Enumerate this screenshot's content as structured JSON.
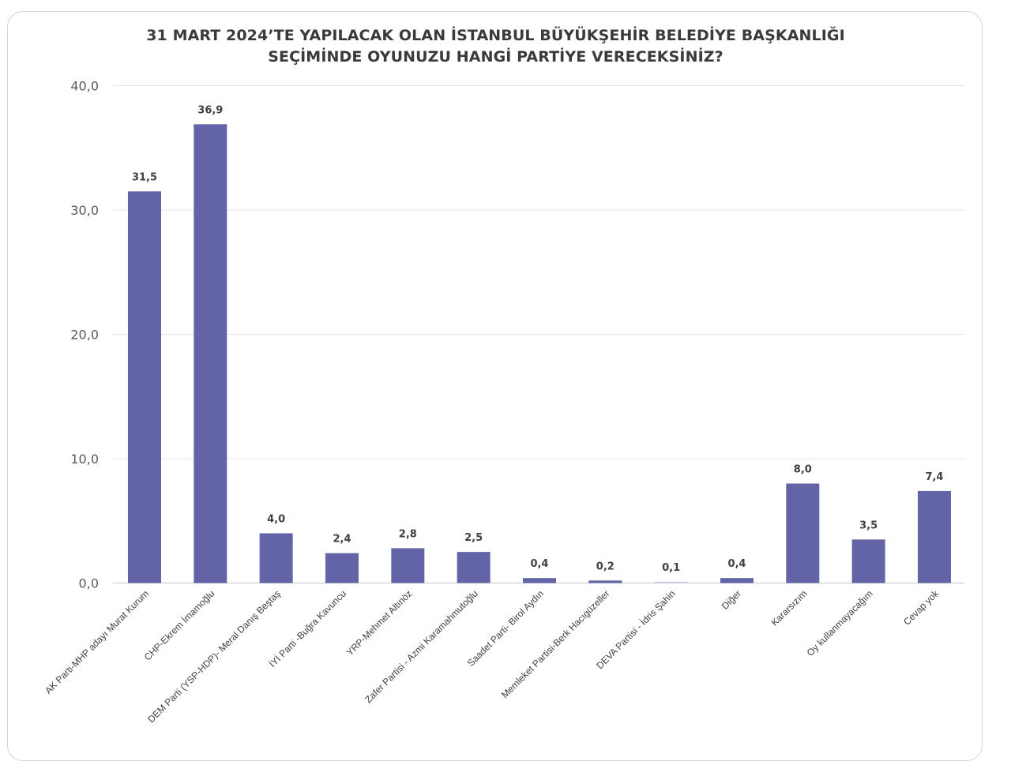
{
  "chart_data": {
    "type": "bar",
    "title_lines": [
      "31 MART 2024’TE YAPILACAK OLAN İSTANBUL BÜYÜKŞEHİR BELEDİYE BAŞKANLIĞI",
      "SEÇİMİNDE OYUNUZU HANGİ PARTİYE VERECEKSİNİZ?"
    ],
    "categories": [
      "AK Parti-MHP adayı Murat Kurum",
      "CHP-Ekrem İmamoğlu",
      "DEM Parti (YSP-HDP)- Meral Danış Beştaş",
      "İYİ Parti -Buğra Kavuncu",
      "YRP-Mehmet Altınöz",
      "Zafer Partisi - Azmi Karamahmutoğlu",
      "Saadet Parti- Birol Aydın",
      "Memleket Partisi-Berk Hacıgüzeller",
      "DEVA Partisi - İdris Şahin",
      "Diğer",
      "Kararsızım",
      "Oy kullanmayacağım",
      "Cevap yok"
    ],
    "values": [
      31.5,
      36.9,
      4.0,
      2.4,
      2.8,
      2.5,
      0.4,
      0.2,
      0.1,
      0.4,
      8.0,
      3.5,
      7.4
    ],
    "value_labels": [
      "31,5",
      "36,9",
      "4,0",
      "2,4",
      "2,8",
      "2,5",
      "0,4",
      "0,2",
      "0,1",
      "0,4",
      "8,0",
      "3,5",
      "7,4"
    ],
    "ylim": [
      0,
      40
    ],
    "yticks": [
      0,
      10,
      20,
      30,
      40
    ],
    "ytick_labels": [
      "0,0",
      "10,0",
      "20,0",
      "30,0",
      "40,0"
    ],
    "grid": true,
    "legend": "none",
    "colors": {
      "bar": "#6264a7",
      "bar_faint": "#c9cadf",
      "grid": "#e4e4e4",
      "axis": "#c8c8c8"
    }
  }
}
